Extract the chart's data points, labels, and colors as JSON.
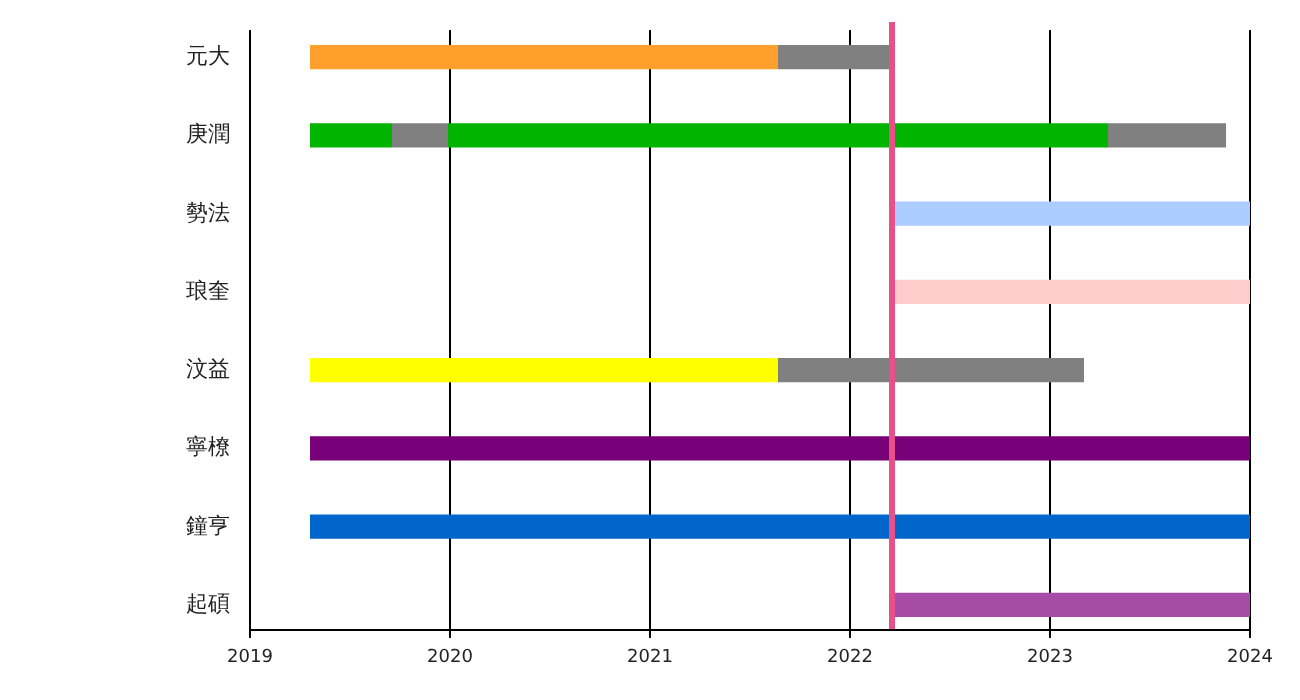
{
  "chart_data": {
    "type": "bar",
    "orientation": "horizontal",
    "categories": [
      "元大",
      "庚潤",
      "勢法",
      "琅奎",
      "汶益",
      "寧橑",
      "鐘亨",
      "起碩"
    ],
    "series": [
      {
        "colors": [
          "#ffa02c",
          "#00b400",
          "#aaccff",
          "#ffcccc",
          "#ffff00",
          "#780078",
          "#0066cc",
          "#a64ca6"
        ],
        "base": [
          2019.3,
          2019.3,
          2022.21,
          2022.21,
          2019.3,
          2019.3,
          2019.3,
          2022.21
        ],
        "values": [
          2.34,
          0.41,
          1.79,
          1.79,
          2.34,
          4.7,
          4.7,
          1.79
        ]
      },
      {
        "color": "#808080",
        "base": [
          2021.64,
          2019.71,
          null,
          null,
          2021.64,
          null,
          null,
          null
        ],
        "values": [
          0.57,
          0.28,
          null,
          null,
          1.53,
          null,
          null,
          null
        ]
      },
      {
        "color": "#00b400",
        "base": [
          null,
          2019.99,
          null,
          null,
          null,
          null,
          null,
          null
        ],
        "values": [
          null,
          3.3,
          null,
          null,
          null,
          null,
          null,
          null
        ]
      },
      {
        "color": "#808080",
        "base": [
          null,
          2023.29,
          null,
          null,
          null,
          null,
          null,
          null
        ],
        "values": [
          null,
          0.59,
          null,
          null,
          null,
          null,
          null,
          null
        ]
      }
    ],
    "xlim": [
      2019,
      2024
    ],
    "xticks": [
      2019,
      2020,
      2021,
      2022,
      2023,
      2024
    ],
    "grid": "x",
    "ref_lines": [
      {
        "axis": "x",
        "value": 2022.21,
        "color": "#e8508a"
      }
    ]
  }
}
